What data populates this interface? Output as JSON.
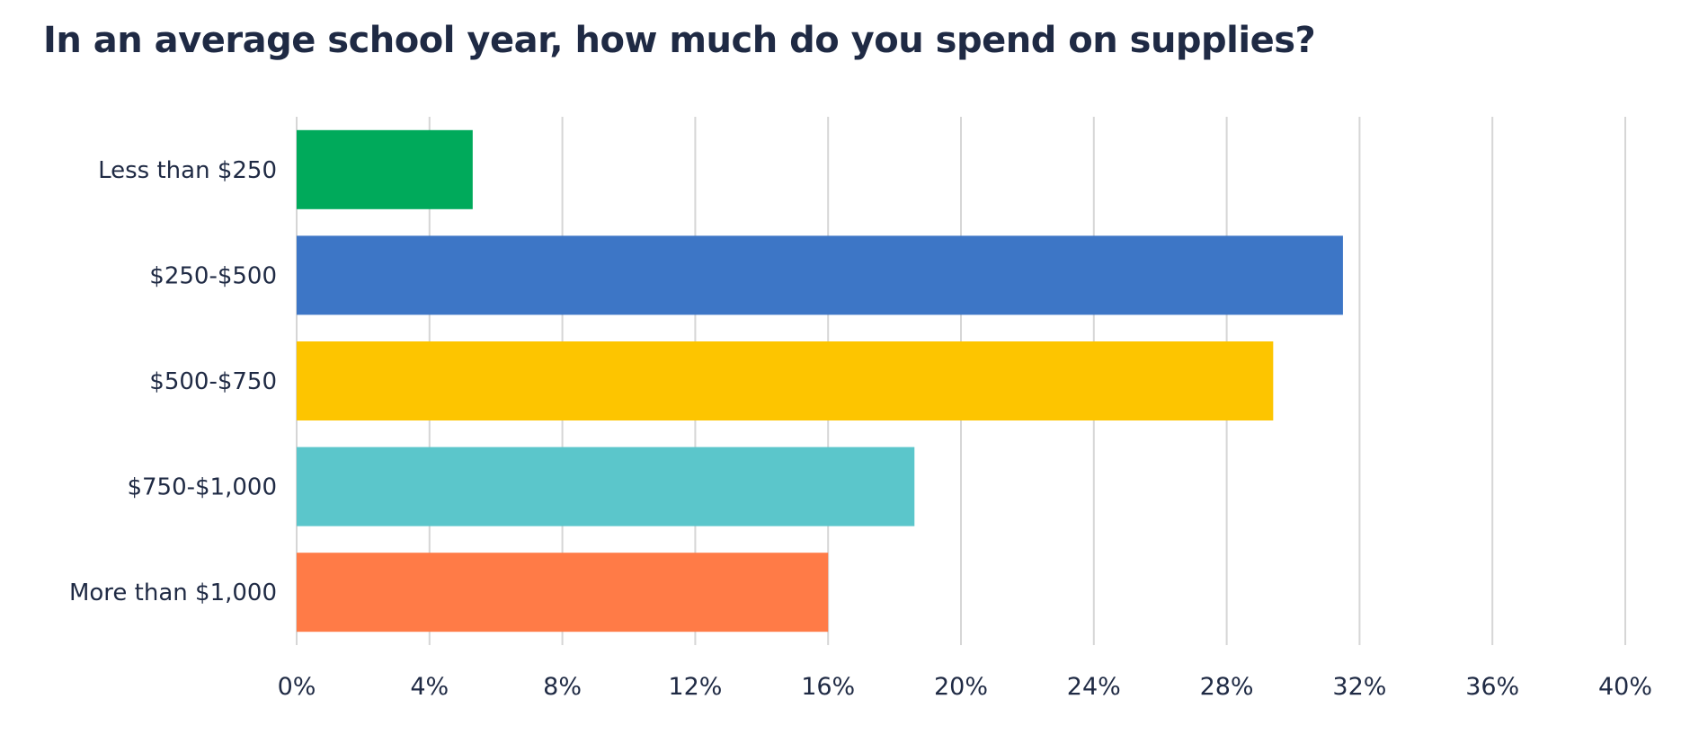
{
  "chart_data": {
    "type": "bar",
    "orientation": "horizontal",
    "title": "In an average school year, how much do you spend on supplies?",
    "categories": [
      "Less than $250",
      "$250-$500",
      "$500-$750",
      "$750-$1,000",
      "More than $1,000"
    ],
    "values": [
      5.3,
      31.5,
      29.4,
      18.6,
      16.0
    ],
    "colors": [
      "#00aa5b",
      "#3d76c6",
      "#fdc500",
      "#5bc6cb",
      "#ff7b47"
    ],
    "xlabel": "",
    "ylabel": "",
    "xlim": [
      0,
      40
    ],
    "xticks": [
      0,
      4,
      8,
      12,
      16,
      20,
      24,
      28,
      32,
      36,
      40
    ],
    "tick_suffix": "%",
    "grid": true,
    "legend": "none"
  },
  "colors": {
    "text": "#1f2a44",
    "grid": "#d6d6d6"
  }
}
